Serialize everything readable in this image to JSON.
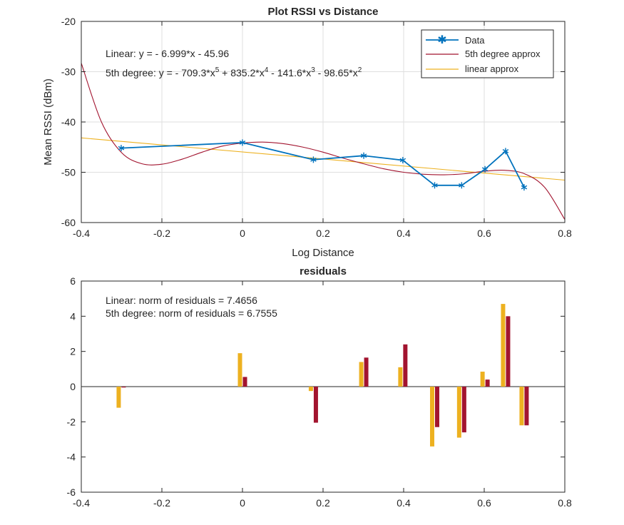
{
  "chart_data": [
    {
      "type": "line",
      "title": "Plot RSSI vs Distance",
      "xlabel": "Log Distance",
      "ylabel": "Mean RSSI (dBm)",
      "xlim": [
        -0.4,
        0.8
      ],
      "ylim": [
        -60,
        -20
      ],
      "xticks": [
        "-0.4",
        "-0.2",
        "0",
        "0.2",
        "0.4",
        "0.6",
        "0.8"
      ],
      "yticks": [
        "-60",
        "-50",
        "-40",
        "-30",
        "-20"
      ],
      "grid": true,
      "legend_position": "top-right",
      "annotations": {
        "linear": "Linear:  y = - 6.999*x - 45.96",
        "fifth_prefix": "5th degree:  y = - 709.3*x",
        "fifth_sup1": "5",
        "fifth_mid1": " + 835.2*x",
        "fifth_sup2": "4",
        "fifth_mid2": " - 141.6*x",
        "fifth_sup3": "3",
        "fifth_mid3": " - 98.65*x",
        "fifth_sup4": "2"
      },
      "colors": {
        "data": "#0072BD",
        "fifth": "#A2142F",
        "linear": "#EDB120"
      },
      "series": [
        {
          "name": "Data",
          "marker": "asterisk",
          "x": [
            -0.301,
            0.0,
            0.176,
            0.301,
            0.398,
            0.477,
            0.544,
            0.602,
            0.653,
            0.699
          ],
          "y": [
            -45.2,
            -44.1,
            -47.5,
            -46.7,
            -47.6,
            -52.6,
            -52.6,
            -49.4,
            -45.8,
            -53.0
          ]
        },
        {
          "name": "5th degree approx",
          "x": [
            -0.4,
            -0.35,
            -0.3,
            -0.25,
            -0.2,
            -0.15,
            -0.1,
            -0.05,
            0.0,
            0.05,
            0.1,
            0.15,
            0.2,
            0.25,
            0.3,
            0.35,
            0.4,
            0.45,
            0.5,
            0.55,
            0.6,
            0.65,
            0.7,
            0.75,
            0.8
          ],
          "y": [
            -28.3,
            -40.0,
            -46.1,
            -48.3,
            -48.4,
            -47.4,
            -46.0,
            -44.8,
            -44.2,
            -44.0,
            -44.3,
            -45.0,
            -46.0,
            -47.2,
            -48.3,
            -49.3,
            -50.0,
            -50.4,
            -50.5,
            -50.3,
            -49.8,
            -49.6,
            -50.3,
            -53.0,
            -59.4
          ]
        },
        {
          "name": "linear approx",
          "x": [
            -0.4,
            0.8
          ],
          "y": [
            -43.16,
            -51.56
          ]
        }
      ]
    },
    {
      "type": "bar",
      "title": "residuals",
      "xlim": [
        -0.4,
        0.8
      ],
      "ylim": [
        -6,
        6
      ],
      "xticks": [
        "-0.4",
        "-0.2",
        "0",
        "0.2",
        "0.4",
        "0.6",
        "0.8"
      ],
      "yticks": [
        "-6",
        "-4",
        "-2",
        "0",
        "2",
        "4",
        "6"
      ],
      "grid": false,
      "annotations": {
        "linear": "Linear: norm of residuals = 7.4656",
        "fifth": "5th degree: norm of residuals = 6.7555"
      },
      "x": [
        -0.301,
        0.0,
        0.176,
        0.301,
        0.398,
        0.477,
        0.544,
        0.602,
        0.653,
        0.699
      ],
      "series": [
        {
          "color": "#EDB120",
          "values": [
            -1.2,
            1.9,
            -0.25,
            1.4,
            1.1,
            -3.4,
            -2.9,
            0.85,
            4.7,
            -2.2
          ]
        },
        {
          "color": "#A2142F",
          "values": [
            -0.05,
            0.55,
            -2.05,
            1.65,
            2.4,
            -2.3,
            -2.6,
            0.4,
            4.0,
            -2.2
          ]
        }
      ]
    }
  ]
}
